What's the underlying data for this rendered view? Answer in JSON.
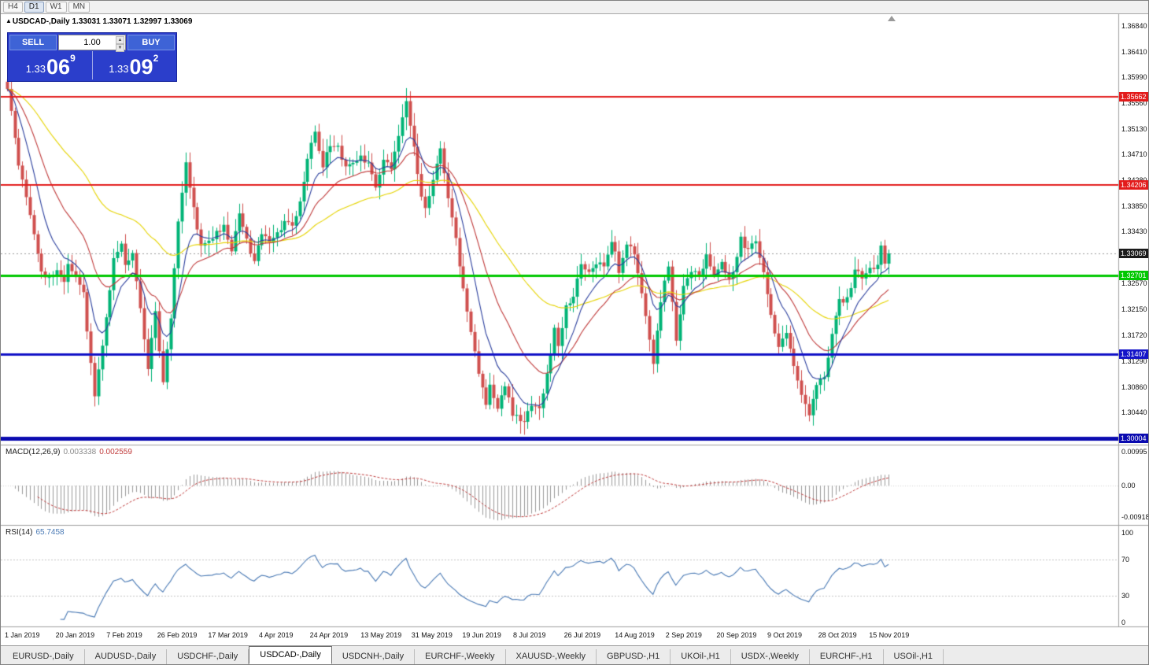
{
  "window": {
    "timeframes": [
      "H4",
      "D1",
      "W1",
      "MN"
    ],
    "active_timeframe": "D1"
  },
  "header": {
    "marker": "▲",
    "symbol": "USDCAD-,Daily",
    "ohlc": "1.33031 1.33071 1.32997 1.33069"
  },
  "trade_panel": {
    "sell_label": "SELL",
    "buy_label": "BUY",
    "volume": "1.00",
    "sell_price": {
      "prefix": "1.33",
      "big": "06",
      "sup": "9"
    },
    "buy_price": {
      "prefix": "1.33",
      "big": "09",
      "sup": "2"
    }
  },
  "indicator_headers": {
    "macd": {
      "title": "MACD(12,26,9)",
      "value1": "0.003338",
      "value2": "0.002559"
    },
    "rsi": {
      "title": "RSI(14)",
      "value": "65.7458"
    }
  },
  "tabs": {
    "active_index": 3,
    "items": [
      "EURUSD-,Daily",
      "AUDUSD-,Daily",
      "USDCHF-,Daily",
      "USDCAD-,Daily",
      "USDCNH-,Daily",
      "EURCHF-,Weekly",
      "XAUUSD-,Weekly",
      "GBPUSD-,H1",
      "UKOil-,H1",
      "USDX-,Weekly",
      "EURCHF-,H1",
      "USOil-,H1"
    ]
  },
  "chart_data": {
    "type": "candlestick",
    "symbol": "USDCAD",
    "period": "Daily",
    "bars": 233,
    "ohlc_display": "1.33031 1.33071 1.32997 1.33069",
    "current_price": {
      "value": 1.33069,
      "label": "1.33069",
      "badge_color": "#1a1a1a"
    },
    "y_axis": {
      "min": 1.2998,
      "max": 1.3702,
      "labels": [
        "1.36840",
        "1.36410",
        "1.35990",
        "1.35560",
        "1.35130",
        "1.34710",
        "1.34280",
        "1.33850",
        "1.33430",
        "1.32570",
        "1.32150",
        "1.31720",
        "1.31290",
        "1.30860",
        "1.30440"
      ]
    },
    "x_axis": {
      "labels": [
        "1 Jan 2019",
        "20 Jan 2019",
        "7 Feb 2019",
        "26 Feb 2019",
        "17 Mar 2019",
        "4 Apr 2019",
        "24 Apr 2019",
        "13 May 2019",
        "31 May 2019",
        "19 Jun 2019",
        "8 Jul 2019",
        "26 Jul 2019",
        "14 Aug 2019",
        "2 Sep 2019",
        "20 Sep 2019",
        "9 Oct 2019",
        "28 Oct 2019",
        "15 Nov 2019"
      ]
    },
    "levels": [
      {
        "label": "1.35662",
        "value": 1.35662,
        "color": "#e31b1b",
        "width": 2
      },
      {
        "label": "1.34206",
        "value": 1.34206,
        "color": "#e31b1b",
        "width": 2
      },
      {
        "label": "1.32701",
        "value": 1.32701,
        "color": "#00c800",
        "width": 3
      },
      {
        "label": "1.31407",
        "value": 1.31407,
        "color": "#1414c8",
        "width": 3
      },
      {
        "label": "1.30004",
        "value": 1.30004,
        "color": "#0b0bb0",
        "width": 5
      }
    ],
    "moving_averages": [
      {
        "type": "ema",
        "period": 55,
        "color": "#e6d400"
      },
      {
        "type": "ema",
        "period": 21,
        "color": "#c03a3a"
      },
      {
        "type": "ema",
        "period": 9,
        "color": "#2b3f9e"
      }
    ],
    "colors": {
      "up": "#00b476",
      "down": "#d0504e",
      "macd_hist": "#9a9a9a",
      "macd_signal": "#c03a3a",
      "rsi_line": "#4a7ab5"
    },
    "indicators": {
      "macd": {
        "params": "12,26,9",
        "value_main": 0.003338,
        "value_signal": 0.002559,
        "axis_labels": [
          "0.00995",
          "0.00",
          "-0.00918"
        ],
        "range": [
          -0.0105,
          0.011
        ]
      },
      "rsi": {
        "period": 14,
        "value": 65.7458,
        "axis_labels": [
          "100",
          "70",
          "30",
          "0"
        ],
        "level_lines": [
          70,
          30
        ]
      }
    },
    "price_anchors": [
      [
        0,
        1.3585
      ],
      [
        1,
        1.3545
      ],
      [
        2,
        1.3495
      ],
      [
        3,
        1.345
      ],
      [
        5,
        1.34
      ],
      [
        7,
        1.334
      ],
      [
        9,
        1.328
      ],
      [
        11,
        1.3265
      ],
      [
        13,
        1.328
      ],
      [
        15,
        1.3255
      ],
      [
        16,
        1.329
      ],
      [
        18,
        1.3265
      ],
      [
        20,
        1.324
      ],
      [
        21,
        1.318
      ],
      [
        23,
        1.3075
      ],
      [
        24,
        1.311
      ],
      [
        26,
        1.32
      ],
      [
        28,
        1.33
      ],
      [
        30,
        1.332
      ],
      [
        31,
        1.329
      ],
      [
        33,
        1.3305
      ],
      [
        35,
        1.322
      ],
      [
        37,
        1.312
      ],
      [
        39,
        1.321
      ],
      [
        41,
        1.309
      ],
      [
        43,
        1.32
      ],
      [
        45,
        1.336
      ],
      [
        47,
        1.3455
      ],
      [
        49,
        1.338
      ],
      [
        51,
        1.332
      ],
      [
        53,
        1.333
      ],
      [
        55,
        1.334
      ],
      [
        57,
        1.335
      ],
      [
        59,
        1.331
      ],
      [
        61,
        1.337
      ],
      [
        63,
        1.333
      ],
      [
        65,
        1.329
      ],
      [
        67,
        1.334
      ],
      [
        69,
        1.333
      ],
      [
        71,
        1.334
      ],
      [
        73,
        1.336
      ],
      [
        75,
        1.335
      ],
      [
        77,
        1.339
      ],
      [
        79,
        1.346
      ],
      [
        81,
        1.351
      ],
      [
        83,
        1.345
      ],
      [
        85,
        1.349
      ],
      [
        87,
        1.348
      ],
      [
        89,
        1.345
      ],
      [
        91,
        1.346
      ],
      [
        93,
        1.3465
      ],
      [
        95,
        1.346
      ],
      [
        97,
        1.342
      ],
      [
        99,
        1.346
      ],
      [
        101,
        1.345
      ],
      [
        103,
        1.35
      ],
      [
        105,
        1.356
      ],
      [
        107,
        1.348
      ],
      [
        109,
        1.34
      ],
      [
        110,
        1.338
      ],
      [
        112,
        1.343
      ],
      [
        114,
        1.348
      ],
      [
        116,
        1.34
      ],
      [
        118,
        1.333
      ],
      [
        120,
        1.325
      ],
      [
        122,
        1.318
      ],
      [
        124,
        1.311
      ],
      [
        126,
        1.306
      ],
      [
        127,
        1.309
      ],
      [
        129,
        1.305
      ],
      [
        131,
        1.309
      ],
      [
        133,
        1.304
      ],
      [
        135,
        1.303
      ],
      [
        136,
        1.3025
      ],
      [
        138,
        1.306
      ],
      [
        140,
        1.305
      ],
      [
        142,
        1.311
      ],
      [
        144,
        1.318
      ],
      [
        145,
        1.315
      ],
      [
        147,
        1.322
      ],
      [
        149,
        1.323
      ],
      [
        151,
        1.329
      ],
      [
        153,
        1.328
      ],
      [
        155,
        1.329
      ],
      [
        157,
        1.329
      ],
      [
        159,
        1.333
      ],
      [
        161,
        1.328
      ],
      [
        163,
        1.332
      ],
      [
        165,
        1.331
      ],
      [
        167,
        1.324
      ],
      [
        169,
        1.316
      ],
      [
        170,
        1.312
      ],
      [
        172,
        1.323
      ],
      [
        174,
        1.329
      ],
      [
        176,
        1.316
      ],
      [
        178,
        1.325
      ],
      [
        180,
        1.328
      ],
      [
        182,
        1.327
      ],
      [
        184,
        1.33
      ],
      [
        186,
        1.327
      ],
      [
        188,
        1.329
      ],
      [
        190,
        1.326
      ],
      [
        192,
        1.33
      ],
      [
        193,
        1.333
      ],
      [
        195,
        1.331
      ],
      [
        197,
        1.333
      ],
      [
        199,
        1.328
      ],
      [
        201,
        1.32
      ],
      [
        203,
        1.315
      ],
      [
        205,
        1.318
      ],
      [
        207,
        1.312
      ],
      [
        209,
        1.307
      ],
      [
        211,
        1.304
      ],
      [
        213,
        1.309
      ],
      [
        215,
        1.31
      ],
      [
        217,
        1.317
      ],
      [
        219,
        1.323
      ],
      [
        221,
        1.323
      ],
      [
        223,
        1.328
      ],
      [
        225,
        1.327
      ],
      [
        227,
        1.328
      ],
      [
        229,
        1.329
      ],
      [
        230,
        1.332
      ],
      [
        231,
        1.329
      ],
      [
        232,
        1.33069
      ]
    ]
  }
}
